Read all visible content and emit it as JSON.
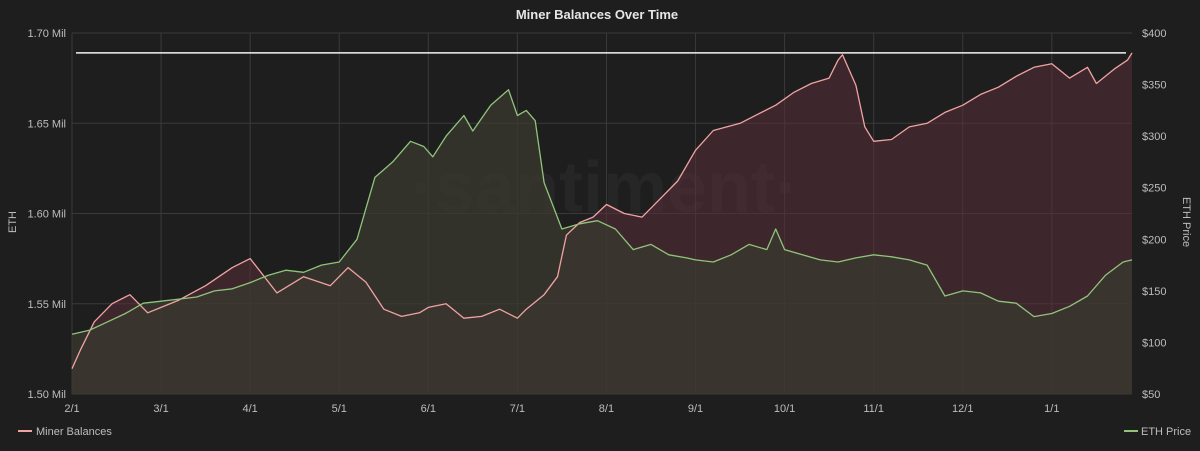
{
  "chart_data": {
    "type": "area",
    "title": "Miner Balances Over Time",
    "watermark": "·santiment·",
    "ylabel_left": "ETH",
    "ylabel_right": "ETH Price",
    "ylim_left": [
      1.5,
      1.7
    ],
    "ylim_right": [
      50,
      400
    ],
    "yticks_left": [
      {
        "value": 1.5,
        "label": "1.50 Mil"
      },
      {
        "value": 1.55,
        "label": "1.55 Mil"
      },
      {
        "value": 1.6,
        "label": "1.60 Mil"
      },
      {
        "value": 1.65,
        "label": "1.65 Mil"
      },
      {
        "value": 1.7,
        "label": "1.70 Mil"
      }
    ],
    "yticks_right": [
      {
        "value": 50,
        "label": "$50"
      },
      {
        "value": 100,
        "label": "$100"
      },
      {
        "value": 150,
        "label": "$150"
      },
      {
        "value": 200,
        "label": "$200"
      },
      {
        "value": 250,
        "label": "$250"
      },
      {
        "value": 300,
        "label": "$300"
      },
      {
        "value": 350,
        "label": "$350"
      },
      {
        "value": 400,
        "label": "$400"
      }
    ],
    "x_months": [
      "2/1",
      "3/1",
      "4/1",
      "5/1",
      "6/1",
      "7/1",
      "8/1",
      "9/1",
      "10/1",
      "11/1",
      "12/1",
      "1/1"
    ],
    "xlim_months": [
      0,
      11.9
    ],
    "reference_line": {
      "axis": "left",
      "value": 1.689
    },
    "grid": true,
    "legend_position": "bottom",
    "series": [
      {
        "name": "Miner Balances",
        "axis": "left",
        "color": "#f0a3a3",
        "fill": "#5a2f38",
        "x": [
          0.0,
          0.1,
          0.25,
          0.45,
          0.65,
          0.85,
          1.0,
          1.2,
          1.5,
          1.8,
          2.0,
          2.3,
          2.6,
          2.9,
          3.1,
          3.3,
          3.5,
          3.7,
          3.9,
          4.0,
          4.2,
          4.4,
          4.6,
          4.8,
          5.0,
          5.1,
          5.3,
          5.45,
          5.55,
          5.7,
          5.85,
          6.0,
          6.2,
          6.4,
          6.6,
          6.8,
          7.0,
          7.2,
          7.35,
          7.5,
          7.7,
          7.9,
          8.1,
          8.3,
          8.5,
          8.6,
          8.65,
          8.8,
          8.9,
          9.0,
          9.2,
          9.4,
          9.6,
          9.8,
          10.0,
          10.2,
          10.4,
          10.6,
          10.8,
          11.0,
          11.2,
          11.4,
          11.5,
          11.7,
          11.85,
          11.9
        ],
        "values": [
          1.514,
          1.525,
          1.54,
          1.55,
          1.555,
          1.545,
          1.548,
          1.552,
          1.56,
          1.57,
          1.575,
          1.556,
          1.565,
          1.56,
          1.57,
          1.562,
          1.547,
          1.543,
          1.545,
          1.548,
          1.55,
          1.542,
          1.543,
          1.547,
          1.542,
          1.547,
          1.555,
          1.565,
          1.588,
          1.595,
          1.598,
          1.605,
          1.6,
          1.598,
          1.608,
          1.618,
          1.635,
          1.646,
          1.648,
          1.65,
          1.655,
          1.66,
          1.667,
          1.672,
          1.675,
          1.685,
          1.688,
          1.671,
          1.648,
          1.64,
          1.641,
          1.648,
          1.65,
          1.656,
          1.66,
          1.666,
          1.67,
          1.676,
          1.681,
          1.683,
          1.675,
          1.681,
          1.672,
          1.68,
          1.685,
          1.689
        ]
      },
      {
        "name": "ETH Price",
        "axis": "right",
        "color": "#8fc47a",
        "fill": "#3a3a30",
        "x": [
          0.0,
          0.2,
          0.4,
          0.6,
          0.8,
          1.0,
          1.2,
          1.4,
          1.6,
          1.8,
          2.0,
          2.2,
          2.4,
          2.6,
          2.8,
          3.0,
          3.2,
          3.4,
          3.6,
          3.8,
          3.95,
          4.05,
          4.2,
          4.4,
          4.5,
          4.7,
          4.9,
          5.0,
          5.1,
          5.2,
          5.3,
          5.5,
          5.7,
          5.9,
          6.1,
          6.3,
          6.5,
          6.7,
          6.9,
          7.0,
          7.2,
          7.4,
          7.6,
          7.8,
          7.9,
          8.0,
          8.2,
          8.4,
          8.6,
          8.8,
          9.0,
          9.2,
          9.4,
          9.6,
          9.8,
          10.0,
          10.2,
          10.4,
          10.6,
          10.8,
          11.0,
          11.2,
          11.4,
          11.6,
          11.8,
          11.9
        ],
        "values": [
          108,
          112,
          120,
          128,
          138,
          140,
          142,
          144,
          150,
          152,
          158,
          165,
          170,
          168,
          175,
          178,
          200,
          260,
          275,
          295,
          290,
          280,
          300,
          320,
          305,
          330,
          345,
          320,
          325,
          315,
          255,
          210,
          215,
          218,
          210,
          190,
          195,
          185,
          182,
          180,
          178,
          185,
          195,
          190,
          210,
          190,
          185,
          180,
          178,
          182,
          185,
          183,
          180,
          175,
          145,
          150,
          148,
          140,
          138,
          125,
          128,
          135,
          145,
          165,
          178,
          180
        ]
      }
    ]
  }
}
